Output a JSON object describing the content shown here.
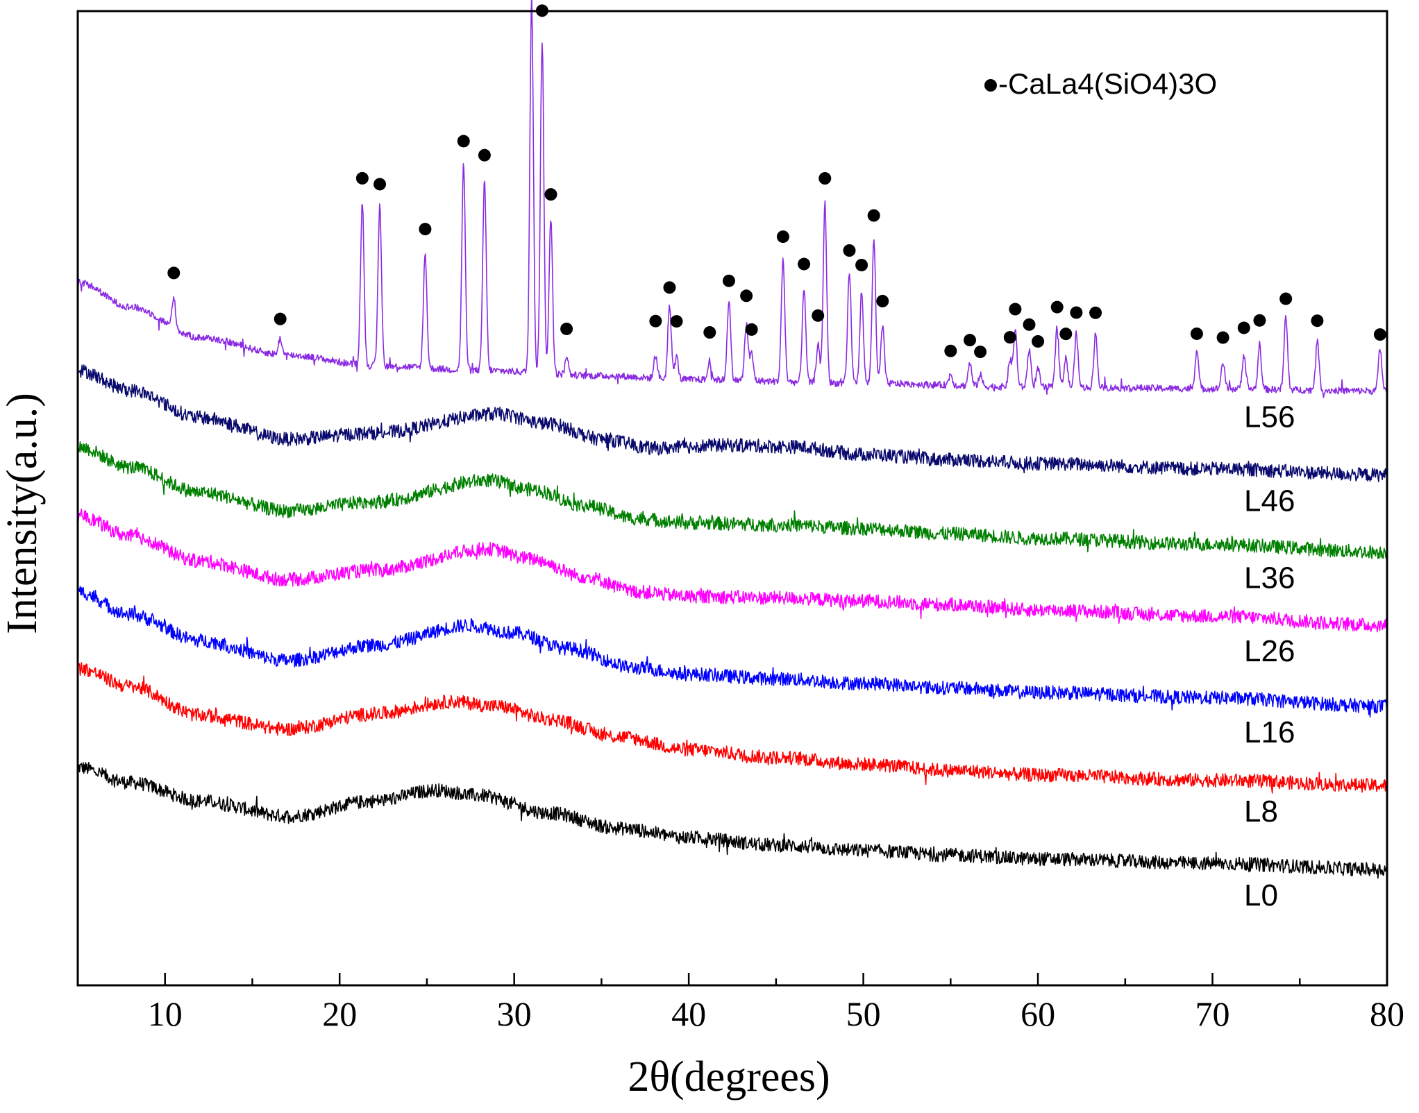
{
  "chart_data": {
    "type": "line",
    "title": "",
    "xlabel": "2θ(degrees)",
    "ylabel": "Intensity(a.u.)",
    "xlim": [
      5,
      80
    ],
    "xticks": [
      10,
      20,
      30,
      40,
      50,
      60,
      70,
      80
    ],
    "xtick_labels": [
      "10",
      "20",
      "30",
      "40",
      "50",
      "60",
      "70",
      "80"
    ],
    "y_ticks_shown": false,
    "legend": {
      "marker": "filled-circle",
      "text": "-CaLa4(SiO4)3O",
      "position": "top-right"
    },
    "series": [
      {
        "name": "L0",
        "label": "L0",
        "color": "#000000",
        "offset": 0,
        "amorphous_hump_center": 25.5,
        "points": [
          [
            5,
            1.42
          ],
          [
            8,
            1.22
          ],
          [
            12,
            0.98
          ],
          [
            17,
            0.78
          ],
          [
            22,
            0.98
          ],
          [
            25.5,
            1.12
          ],
          [
            28,
            1.05
          ],
          [
            32,
            0.82
          ],
          [
            36,
            0.62
          ],
          [
            40,
            0.5
          ],
          [
            45,
            0.4
          ],
          [
            50,
            0.33
          ],
          [
            55,
            0.27
          ],
          [
            60,
            0.22
          ],
          [
            70,
            0.16
          ],
          [
            80,
            0.08
          ]
        ]
      },
      {
        "name": "L8",
        "label": "L8",
        "color": "#ff0000",
        "offset": 1.0,
        "amorphous_hump_center": 26.5,
        "points": [
          [
            5,
            1.72
          ],
          [
            8,
            1.48
          ],
          [
            12,
            1.1
          ],
          [
            17,
            0.92
          ],
          [
            22,
            1.12
          ],
          [
            26.5,
            1.28
          ],
          [
            29,
            1.22
          ],
          [
            32,
            1.05
          ],
          [
            36,
            0.82
          ],
          [
            40,
            0.65
          ],
          [
            45,
            0.55
          ],
          [
            50,
            0.46
          ],
          [
            55,
            0.38
          ],
          [
            60,
            0.32
          ],
          [
            70,
            0.25
          ],
          [
            80,
            0.18
          ]
        ]
      },
      {
        "name": "L16",
        "label": "L16",
        "color": "#0000ff",
        "offset": 2.0,
        "amorphous_hump_center": 27.5,
        "points": [
          [
            5,
            1.72
          ],
          [
            8,
            1.42
          ],
          [
            12,
            1.08
          ],
          [
            17,
            0.82
          ],
          [
            22,
            1.02
          ],
          [
            27.5,
            1.28
          ],
          [
            30,
            1.18
          ],
          [
            33,
            0.98
          ],
          [
            37,
            0.72
          ],
          [
            40,
            0.64
          ],
          [
            45,
            0.58
          ],
          [
            50,
            0.52
          ],
          [
            55,
            0.46
          ],
          [
            60,
            0.4
          ],
          [
            70,
            0.33
          ],
          [
            80,
            0.22
          ]
        ]
      },
      {
        "name": "L26",
        "label": "L26",
        "color": "#ff00ff",
        "offset": 3.0,
        "amorphous_hump_center": 28.5,
        "points": [
          [
            5,
            1.72
          ],
          [
            8,
            1.45
          ],
          [
            12,
            1.12
          ],
          [
            17,
            0.88
          ],
          [
            22,
            1.0
          ],
          [
            28.5,
            1.28
          ],
          [
            31,
            1.15
          ],
          [
            34,
            0.92
          ],
          [
            37,
            0.72
          ],
          [
            40,
            0.66
          ],
          [
            45,
            0.64
          ],
          [
            50,
            0.6
          ],
          [
            55,
            0.55
          ],
          [
            60,
            0.48
          ],
          [
            70,
            0.4
          ],
          [
            80,
            0.28
          ]
        ]
      },
      {
        "name": "L36",
        "label": "L36",
        "color": "#008000",
        "offset": 4.0,
        "amorphous_hump_center": 28.5,
        "points": [
          [
            5,
            1.62
          ],
          [
            8,
            1.35
          ],
          [
            12,
            1.02
          ],
          [
            17,
            0.78
          ],
          [
            22,
            0.9
          ],
          [
            28.5,
            1.18
          ],
          [
            31,
            1.06
          ],
          [
            34,
            0.85
          ],
          [
            37,
            0.68
          ],
          [
            40,
            0.62
          ],
          [
            45,
            0.6
          ],
          [
            50,
            0.55
          ],
          [
            55,
            0.48
          ],
          [
            60,
            0.42
          ],
          [
            70,
            0.34
          ],
          [
            80,
            0.24
          ]
        ]
      },
      {
        "name": "L46",
        "label": "L46",
        "color": "#0a0a6e",
        "offset": 5.0,
        "amorphous_hump_center": 29,
        "points": [
          [
            5,
            1.62
          ],
          [
            8,
            1.36
          ],
          [
            12,
            1.0
          ],
          [
            17,
            0.72
          ],
          [
            22,
            0.8
          ],
          [
            29,
            1.05
          ],
          [
            32,
            0.92
          ],
          [
            35,
            0.72
          ],
          [
            38,
            0.6
          ],
          [
            42,
            0.64
          ],
          [
            46,
            0.62
          ],
          [
            50,
            0.52
          ],
          [
            55,
            0.45
          ],
          [
            60,
            0.4
          ],
          [
            70,
            0.33
          ],
          [
            80,
            0.25
          ]
        ]
      },
      {
        "name": "L56",
        "label": "L56",
        "color": "#8a2be2",
        "offset": 6.0,
        "baseline": [
          [
            5,
            1.78
          ],
          [
            8,
            1.45
          ],
          [
            12,
            1.05
          ],
          [
            17,
            0.82
          ],
          [
            22,
            0.68
          ],
          [
            28,
            0.62
          ],
          [
            35,
            0.55
          ],
          [
            40,
            0.5
          ],
          [
            50,
            0.45
          ],
          [
            60,
            0.4
          ],
          [
            70,
            0.38
          ],
          [
            80,
            0.35
          ]
        ],
        "crystalline_peaks_2theta": [
          10.5,
          16.6,
          21.3,
          22.3,
          24.9,
          27.1,
          28.3,
          31.0,
          31.6,
          32.1,
          33.0,
          38.1,
          38.9,
          39.3,
          41.2,
          42.3,
          43.3,
          43.6,
          45.4,
          46.6,
          47.4,
          47.8,
          49.2,
          49.9,
          50.6,
          51.1,
          55.0,
          56.1,
          56.7,
          58.4,
          58.7,
          59.5,
          60.0,
          61.1,
          61.6,
          62.2,
          63.3,
          69.1,
          70.6,
          71.8,
          72.7,
          74.2,
          76.0,
          79.6
        ],
        "peak_heights": [
          0.4,
          0.22,
          2.15,
          2.1,
          1.5,
          2.7,
          2.5,
          4.95,
          4.35,
          2.05,
          0.25,
          0.3,
          0.95,
          0.3,
          0.25,
          1.05,
          0.75,
          0.35,
          1.6,
          1.25,
          0.5,
          2.35,
          1.45,
          1.2,
          1.9,
          0.75,
          0.15,
          0.3,
          0.15,
          0.35,
          0.75,
          0.5,
          0.25,
          0.8,
          0.4,
          0.7,
          0.7,
          0.5,
          0.35,
          0.45,
          0.55,
          0.95,
          0.65,
          0.55
        ],
        "peak_marker_heights": [
          0.72,
          0.47,
          2.45,
          2.38,
          1.82,
          3.0,
          2.82,
          5.35,
          4.75,
          2.35,
          0.6,
          0.75,
          1.2,
          0.76,
          0.62,
          1.3,
          1.11,
          0.67,
          1.9,
          1.55,
          0.88,
          2.68,
          1.74,
          1.55,
          2.2,
          1.08,
          0.45,
          0.6,
          0.45,
          0.65,
          1.02,
          0.82,
          0.6,
          1.05,
          0.7,
          0.98,
          0.98,
          0.72,
          0.67,
          0.8,
          0.9,
          1.19,
          0.91,
          0.74
        ]
      }
    ]
  }
}
